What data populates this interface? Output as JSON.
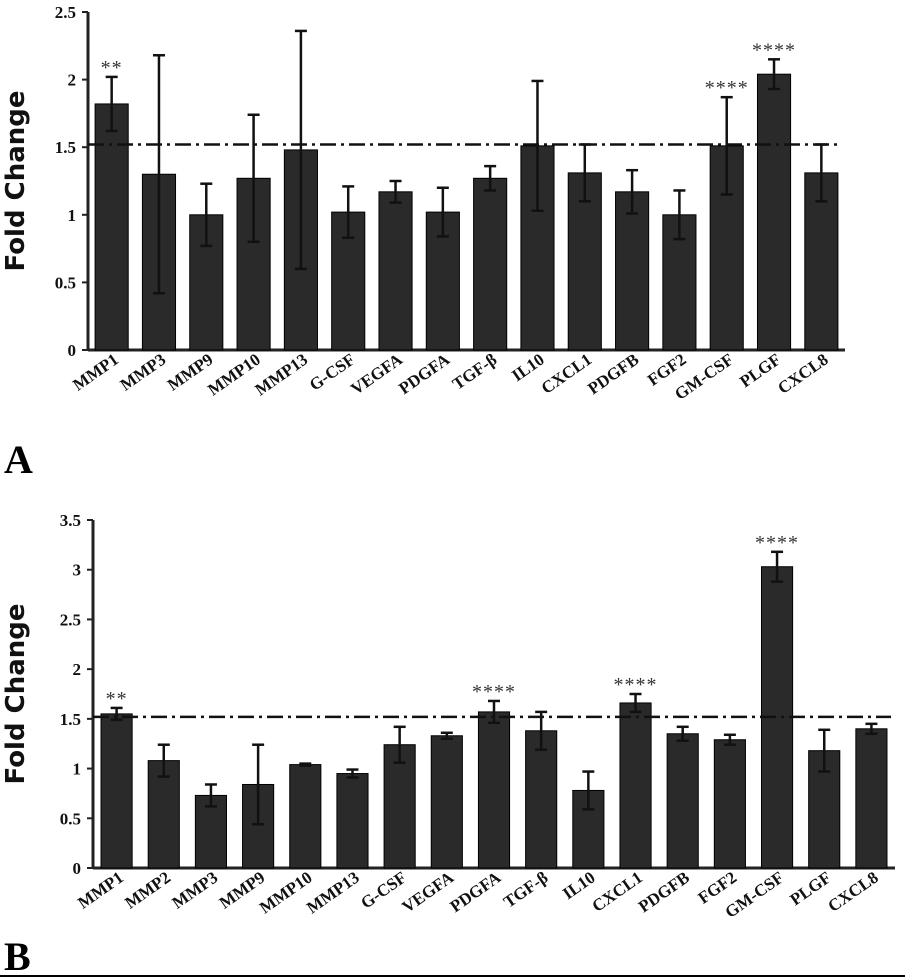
{
  "chart_data": [
    {
      "type": "bar",
      "panel": "A",
      "ylabel": "Fold Change",
      "xlabel": "",
      "ylim": [
        0,
        2.5
      ],
      "yticks": [
        "0",
        "0.5",
        "1",
        "1.5",
        "2",
        "2.5"
      ],
      "threshold": 1.52,
      "categories": [
        "MMP1",
        "MMP3",
        "MMP9",
        "MMP10",
        "MMP13",
        "G-CSF",
        "VEGFA",
        "PDGFA",
        "TGF-β",
        "IL10",
        "CXCL1",
        "PDGFB",
        "FGF2",
        "GM-CSF",
        "PLGF",
        "CXCL8"
      ],
      "values": [
        1.82,
        1.3,
        1.0,
        1.27,
        1.48,
        1.02,
        1.17,
        1.02,
        1.27,
        1.51,
        1.31,
        1.17,
        1.0,
        1.51,
        2.04,
        1.31
      ],
      "errors": [
        0.2,
        0.88,
        0.23,
        0.47,
        0.88,
        0.19,
        0.08,
        0.18,
        0.09,
        0.48,
        0.21,
        0.16,
        0.18,
        0.36,
        0.11,
        0.21
      ],
      "significance": [
        "**",
        "",
        "",
        "",
        "",
        "",
        "",
        "",
        "",
        "",
        "",
        "",
        "",
        "****",
        "****",
        ""
      ],
      "bar_color": "#2a2a2a"
    },
    {
      "type": "bar",
      "panel": "B",
      "ylabel": "Fold Change",
      "xlabel": "",
      "ylim": [
        0,
        3.5
      ],
      "yticks": [
        "0",
        "0.5",
        "1",
        "1.5",
        "2",
        "2.5",
        "3",
        "3.5"
      ],
      "threshold": 1.52,
      "categories": [
        "MMP1",
        "MMP2",
        "MMP3",
        "MMP9",
        "MMP10",
        "MMP13",
        "G-CSF",
        "VEGFA",
        "PDGFA",
        "TGF-β",
        "IL10",
        "CXCL1",
        "PDGFB",
        "FGF2",
        "GM-CSF",
        "PLGF",
        "CXCL8"
      ],
      "values": [
        1.55,
        1.08,
        0.73,
        0.84,
        1.04,
        0.95,
        1.24,
        1.33,
        1.57,
        1.38,
        0.78,
        1.66,
        1.35,
        1.29,
        3.03,
        1.18,
        1.4
      ],
      "errors": [
        0.06,
        0.16,
        0.11,
        0.4,
        0.01,
        0.04,
        0.18,
        0.03,
        0.11,
        0.19,
        0.19,
        0.09,
        0.07,
        0.05,
        0.15,
        0.21,
        0.05
      ],
      "significance": [
        "**",
        "",
        "",
        "",
        "",
        "",
        "",
        "",
        "****",
        "",
        "",
        "****",
        "",
        "",
        "****",
        "",
        ""
      ],
      "bar_color": "#2a2a2a"
    }
  ]
}
